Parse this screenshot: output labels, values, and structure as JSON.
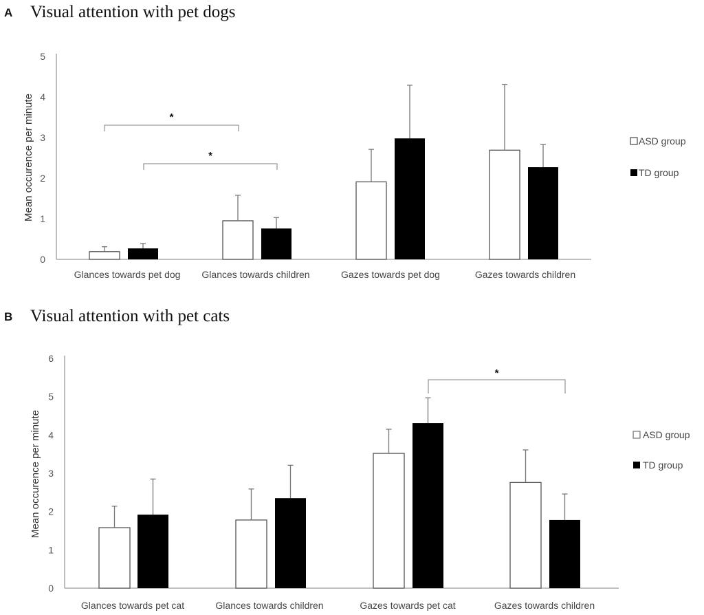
{
  "chart_data": [
    {
      "id": "A",
      "type": "bar",
      "panel_label": "A",
      "title": "Visual attention with pet dogs",
      "xlabel": "",
      "ylabel": "Mean occurence per minute",
      "ylim": [
        0,
        5
      ],
      "yticks": [
        0,
        1,
        2,
        3,
        4,
        5
      ],
      "grid": false,
      "legend_position": "right",
      "categories": [
        "Glances towards pet dog",
        "Glances towards children",
        "Gazes towards pet dog",
        "Gazes towards children"
      ],
      "series": [
        {
          "name": "ASD group",
          "fill": "#ffffff",
          "values": [
            0.19,
            0.95,
            1.91,
            2.69
          ],
          "error_upper": [
            0.31,
            1.58,
            2.71,
            4.31
          ]
        },
        {
          "name": "TD group",
          "fill": "#000000",
          "values": [
            0.27,
            0.76,
            2.98,
            2.27
          ],
          "error_upper": [
            0.39,
            1.03,
            4.29,
            2.83
          ]
        }
      ],
      "significance": [
        {
          "label": "*",
          "from": {
            "category": 0,
            "series": 0
          },
          "to": {
            "category": 1,
            "series": 0
          }
        },
        {
          "label": "*",
          "from": {
            "category": 0,
            "series": 1
          },
          "to": {
            "category": 1,
            "series": 1
          }
        }
      ]
    },
    {
      "id": "B",
      "type": "bar",
      "panel_label": "B",
      "title": "Visual attention with pet cats",
      "xlabel": "",
      "ylabel": "Mean occurence per minute",
      "ylim": [
        0,
        6
      ],
      "yticks": [
        0,
        1,
        2,
        3,
        4,
        5,
        6
      ],
      "grid": false,
      "legend_position": "right",
      "categories": [
        "Glances towards pet cat",
        "Glances towards children",
        "Gazes towards pet cat",
        "Gazes towards children"
      ],
      "series": [
        {
          "name": "ASD group",
          "fill": "#ffffff",
          "values": [
            1.58,
            1.78,
            3.52,
            2.76
          ],
          "error_upper": [
            2.14,
            2.59,
            4.15,
            3.61
          ]
        },
        {
          "name": "TD group",
          "fill": "#000000",
          "values": [
            1.92,
            2.35,
            4.31,
            1.78
          ],
          "error_upper": [
            2.85,
            3.21,
            4.97,
            2.46
          ]
        }
      ],
      "significance": [
        {
          "label": "*",
          "from": {
            "category": 2,
            "series": 1
          },
          "to": {
            "category": 3,
            "series": 1
          }
        }
      ]
    }
  ]
}
